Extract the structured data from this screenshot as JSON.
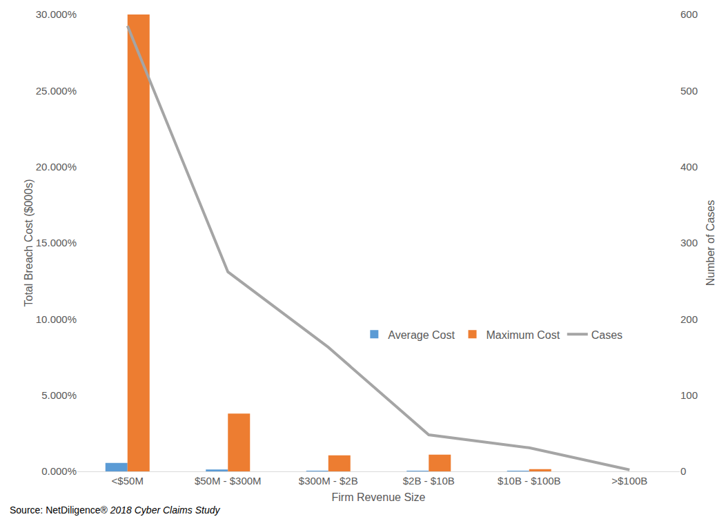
{
  "chart_data": {
    "type": "bar",
    "x_label": "Firm Revenue Size",
    "y_label": "Total Breach Cost ($000s)",
    "y2_label": "Number of Cases",
    "source": [
      "Source: NetDiligence®",
      "2018 Cyber Claims Study"
    ],
    "categories": [
      "<$50M",
      "$50M - $300M",
      "$300M - $2B",
      "$2B - $10B",
      "$10B - $100B",
      ">$100B"
    ],
    "series": [
      {
        "name": "Average Cost",
        "type": "bar",
        "color": "#5b9bd5",
        "values": [
          0.55,
          0.12,
          0.02,
          0.02,
          0.01,
          0
        ]
      },
      {
        "name": "Maximum Cost",
        "type": "bar",
        "color": "#ed7d31",
        "values": [
          30.0,
          3.8,
          1.05,
          1.1,
          0.15,
          0
        ]
      },
      {
        "name": "Cases",
        "type": "line",
        "color": "#a5a5a5",
        "axis": "y2",
        "values": [
          585,
          262,
          163,
          48,
          31,
          2
        ]
      }
    ],
    "ylim": [
      0,
      30
    ],
    "yticks": [
      {
        "value": 0,
        "label": "0.000%"
      },
      {
        "value": 5,
        "label": "5.000%"
      },
      {
        "value": 10,
        "label": "10.000%"
      },
      {
        "value": 15,
        "label": "15.000%"
      },
      {
        "value": 20,
        "label": "20.000%"
      },
      {
        "value": 25,
        "label": "25.000%"
      },
      {
        "value": 30,
        "label": "30.000%"
      }
    ],
    "y2lim": [
      0,
      600
    ],
    "y2ticks": [
      0,
      100,
      200,
      300,
      400,
      500,
      600
    ],
    "grid": false,
    "legend": "center"
  }
}
